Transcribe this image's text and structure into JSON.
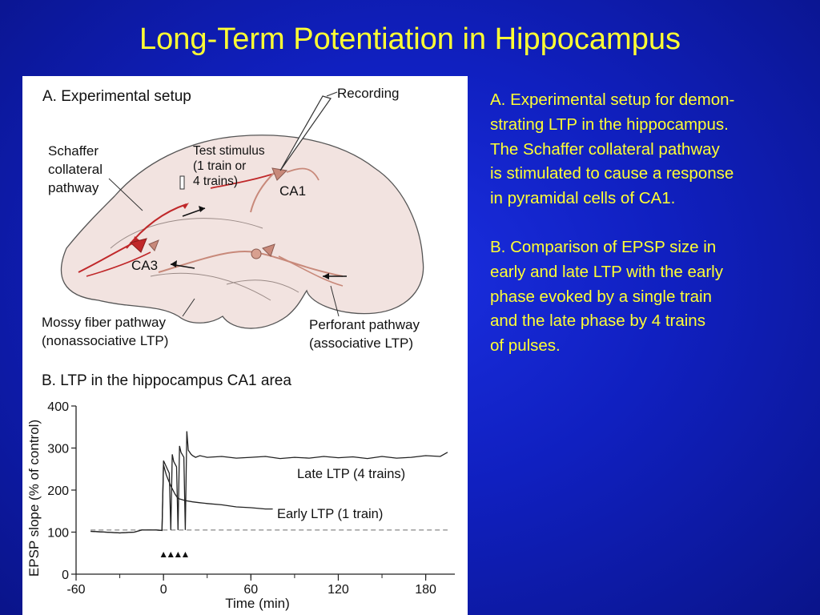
{
  "slide": {
    "title": "Long-Term Potentiation in Hippocampus"
  },
  "panel_a": {
    "heading": "A. Experimental setup",
    "recording": "Recording",
    "schaffer": [
      "Schaffer",
      "collateral",
      "pathway"
    ],
    "test_stimulus": [
      "Test stimulus",
      "(1 train or",
      "4 trains)"
    ],
    "ca1": "CA1",
    "ca3": "CA3",
    "mossy": [
      "Mossy fiber pathway",
      "(nonassociative LTP)"
    ],
    "perforant": [
      "Perforant pathway",
      "(associative LTP)"
    ]
  },
  "panel_b": {
    "heading": "B. LTP in the hippocampus CA1 area"
  },
  "chart_data": {
    "type": "line",
    "title": "B. LTP in the hippocampus CA1 area",
    "xlabel": "Time (min)",
    "ylabel": "EPSP slope (% of control)",
    "xlim": [
      -60,
      200
    ],
    "ylim": [
      0,
      400
    ],
    "xticks": [
      -60,
      0,
      60,
      120,
      180
    ],
    "yticks": [
      0,
      100,
      200,
      300,
      400
    ],
    "baseline": 105,
    "stimulus_markers": [
      0,
      5,
      10,
      15
    ],
    "series": [
      {
        "name": "Late LTP (4 trains)",
        "x": [
          -50,
          -40,
          -30,
          -20,
          -15,
          -10,
          -5,
          -1,
          0,
          2,
          4,
          5,
          6,
          7,
          9,
          10,
          11,
          12,
          14,
          15,
          16,
          17,
          19,
          20,
          22,
          25,
          30,
          40,
          50,
          60,
          70,
          80,
          90,
          100,
          110,
          120,
          130,
          140,
          150,
          160,
          170,
          180,
          190,
          195
        ],
        "y": [
          102,
          100,
          98,
          100,
          105,
          105,
          105,
          104,
          270,
          255,
          240,
          105,
          285,
          268,
          255,
          105,
          305,
          290,
          278,
          105,
          340,
          295,
          285,
          282,
          278,
          282,
          278,
          280,
          276,
          278,
          280,
          275,
          278,
          276,
          280,
          277,
          279,
          275,
          280,
          276,
          278,
          282,
          280,
          290
        ]
      },
      {
        "name": "Early LTP (1 train)",
        "x": [
          -50,
          -40,
          -30,
          -20,
          -15,
          -10,
          -5,
          -1,
          0,
          2,
          5,
          8,
          10,
          15,
          20,
          25,
          30,
          40,
          50,
          60,
          70,
          75
        ],
        "y": [
          102,
          100,
          98,
          100,
          105,
          105,
          105,
          104,
          260,
          235,
          210,
          190,
          180,
          175,
          172,
          170,
          168,
          165,
          160,
          158,
          155,
          155
        ]
      }
    ]
  },
  "description": {
    "a": "A. Experimental setup for demon-\nstrating LTP in the hippocampus.\nThe Schaffer collateral pathway\nis stimulated to cause a response\nin pyramidal cells of CA1.",
    "b": "B.  Comparison of EPSP size in\nearly and late LTP with the early\nphase evoked by a single train\nand the late phase by 4 trains\nof pulses."
  }
}
